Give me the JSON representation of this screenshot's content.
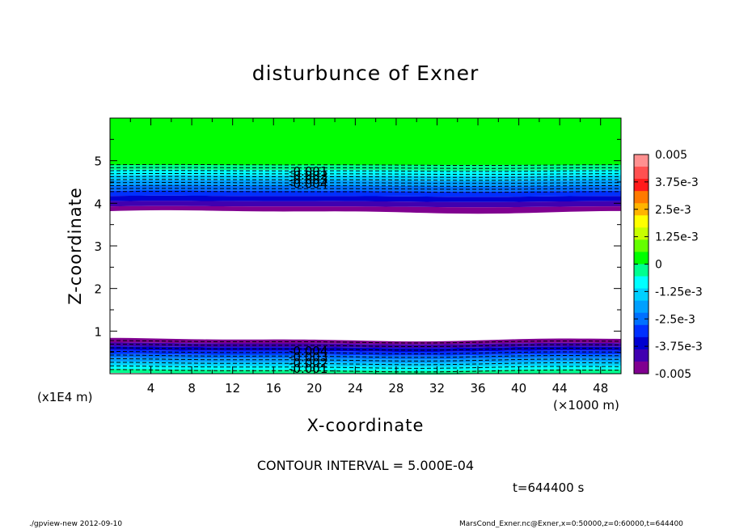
{
  "chart_data": {
    "type": "heatmap",
    "title": "disturbunce of Exner",
    "xlabel": "X-coordinate",
    "ylabel": "Z-coordinate",
    "x_unit_label": "(×1000 m)",
    "y_unit_label": "(x1E4 m)",
    "xlim": [
      0,
      50
    ],
    "ylim": [
      0,
      6
    ],
    "x_ticks": [
      4,
      8,
      12,
      16,
      20,
      24,
      28,
      32,
      36,
      40,
      44,
      48
    ],
    "y_ticks": [
      1,
      2,
      3,
      4,
      5
    ],
    "colorbar": {
      "range": [
        -0.005,
        0.005
      ],
      "labels": [
        "0.005",
        "3.75e-3",
        "2.5e-3",
        "1.25e-3",
        "0",
        "-1.25e-3",
        "-2.5e-3",
        "-3.75e-3",
        "-0.005"
      ],
      "colors": [
        "#ff9090",
        "#ff5050",
        "#ff1a1a",
        "#ff7a00",
        "#ffb400",
        "#ffff00",
        "#c8ff00",
        "#64ff00",
        "#00ff00",
        "#00ff90",
        "#00ffff",
        "#00d0ff",
        "#00a0ff",
        "#0070ff",
        "#0030ff",
        "#0000d0",
        "#4000b0",
        "#800090"
      ]
    },
    "upper_band_z": [
      3.8,
      4.9
    ],
    "lower_band_z": [
      0,
      0.8
    ],
    "contour_labels_upper": [
      "-0.001",
      "-0.002",
      "-0.003",
      "-0.004"
    ],
    "contour_labels_lower": [
      "-0.004",
      "-0.003",
      "-0.002",
      "-0.001"
    ]
  },
  "annotations": {
    "contour_interval": "CONTOUR INTERVAL = 5.000E-04",
    "time": "t=644400 s",
    "footer_left": "./gpview-new  2012-09-10",
    "footer_right": "MarsCond_Exner.nc@Exner,x=0:50000,z=0:60000,t=644400"
  }
}
